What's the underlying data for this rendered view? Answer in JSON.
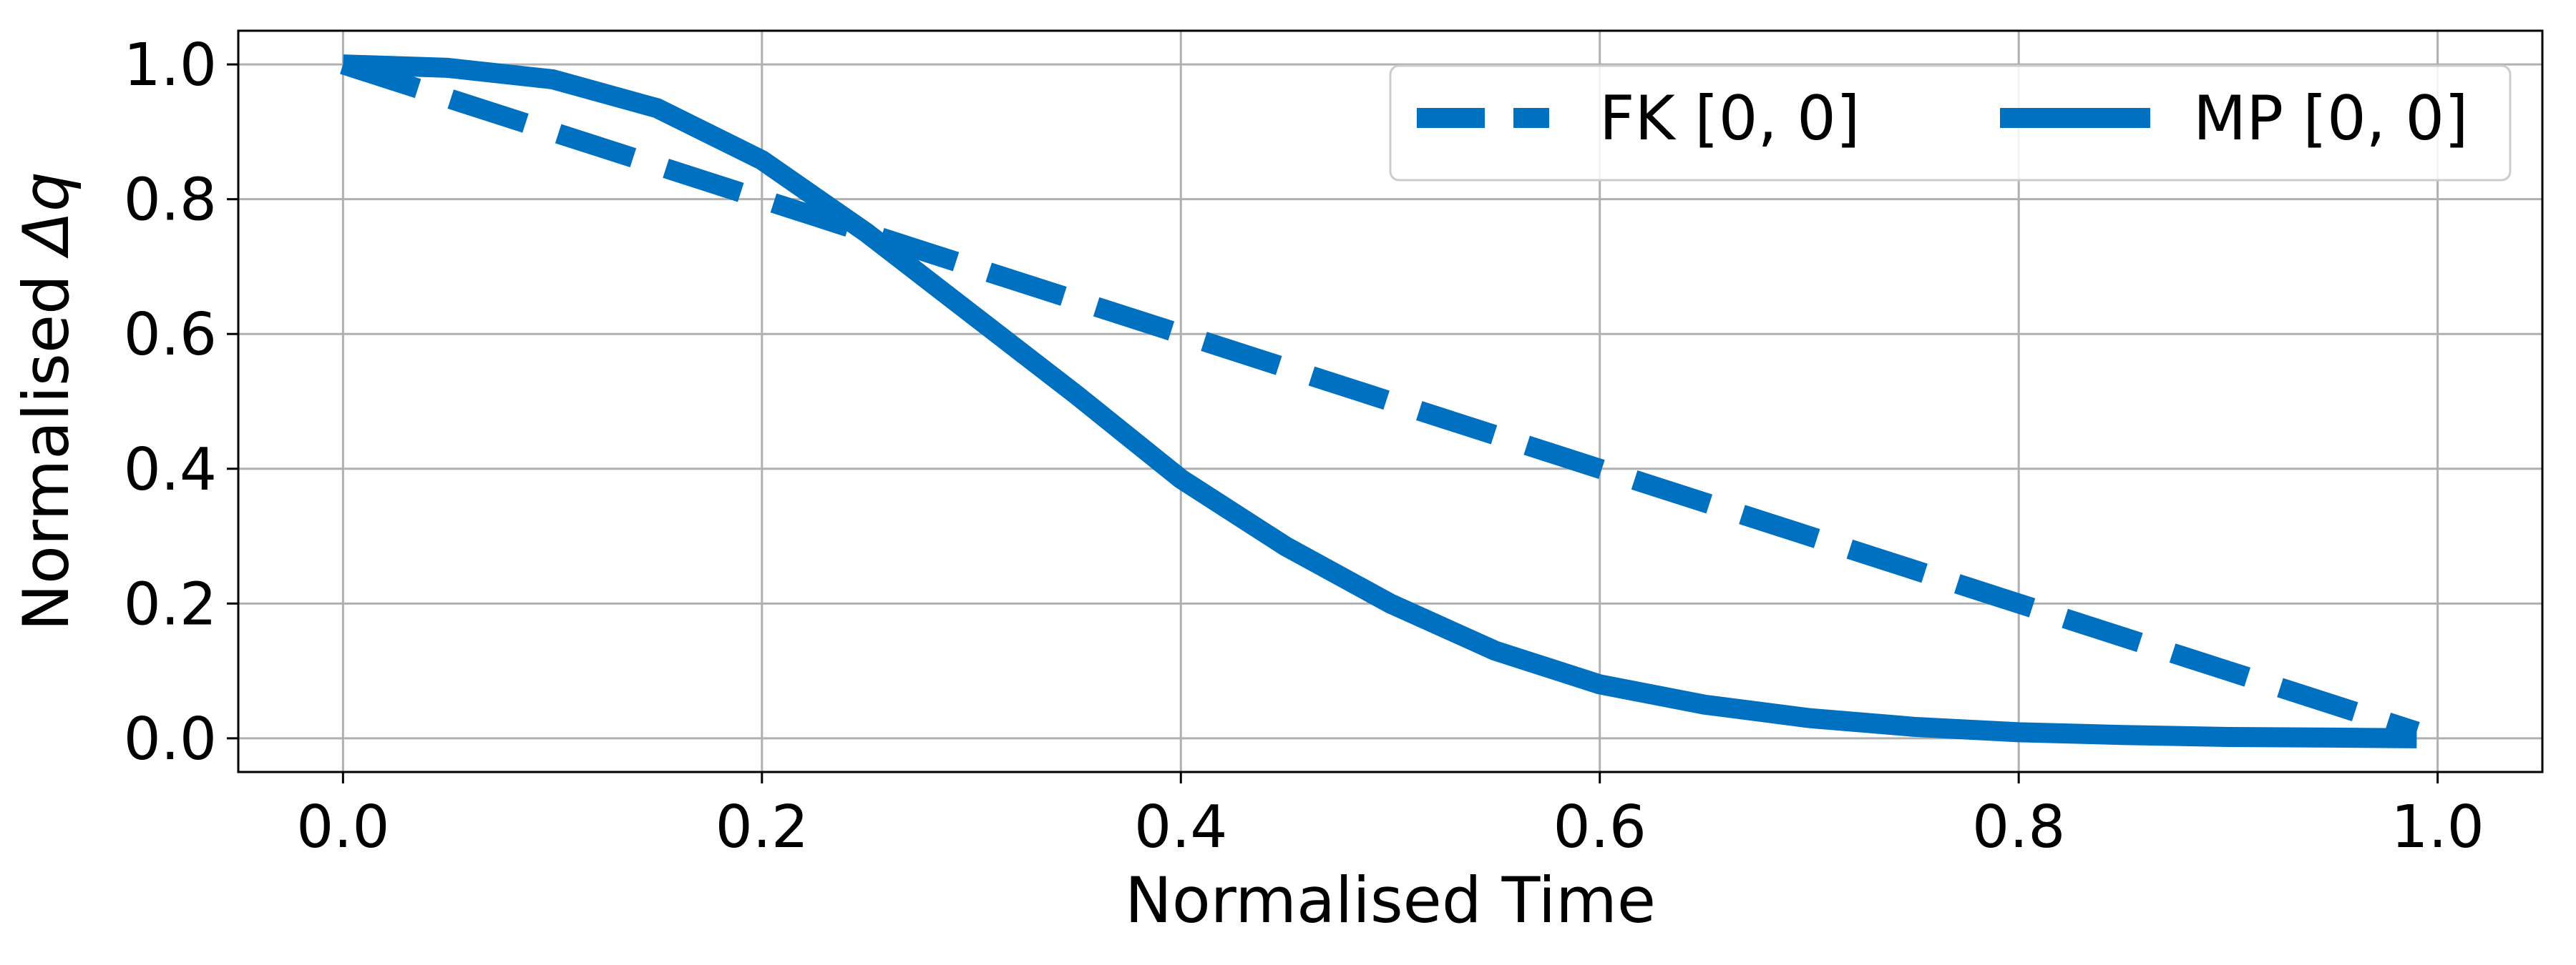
{
  "chart_data": {
    "type": "line",
    "title": "",
    "xlabel": "Normalised Time",
    "ylabel_prefix": "Normalised ",
    "ylabel_symbol": "Δq",
    "xlim": [
      -0.05,
      1.05
    ],
    "ylim": [
      -0.05,
      1.05
    ],
    "grid": true,
    "legend_position": "top-right",
    "xticks": [
      0.0,
      0.2,
      0.4,
      0.6,
      0.8,
      1.0
    ],
    "xtick_labels": [
      "0.0",
      "0.2",
      "0.4",
      "0.6",
      "0.8",
      "1.0"
    ],
    "yticks": [
      0.0,
      0.2,
      0.4,
      0.6,
      0.8,
      1.0
    ],
    "ytick_labels": [
      "0.0",
      "0.2",
      "0.4",
      "0.6",
      "0.8",
      "1.0"
    ],
    "series": [
      {
        "name": "FK [0, 0]",
        "style": "dashed",
        "color": "#0070c0",
        "x": [
          0.0,
          0.1,
          0.2,
          0.3,
          0.4,
          0.5,
          0.6,
          0.7,
          0.8,
          0.9,
          0.99
        ],
        "y": [
          1.0,
          0.9,
          0.8,
          0.7,
          0.6,
          0.5,
          0.4,
          0.3,
          0.2,
          0.1,
          0.01
        ]
      },
      {
        "name": "MP [0, 0]",
        "style": "solid",
        "color": "#0070c0",
        "x": [
          0.0,
          0.05,
          0.1,
          0.15,
          0.2,
          0.25,
          0.3,
          0.35,
          0.4,
          0.45,
          0.5,
          0.55,
          0.6,
          0.65,
          0.7,
          0.75,
          0.8,
          0.85,
          0.9,
          0.95,
          0.99
        ],
        "y": [
          1.0,
          0.995,
          0.978,
          0.935,
          0.858,
          0.75,
          0.63,
          0.51,
          0.385,
          0.285,
          0.2,
          0.13,
          0.08,
          0.05,
          0.03,
          0.017,
          0.009,
          0.005,
          0.002,
          0.001,
          0.0
        ]
      }
    ]
  }
}
